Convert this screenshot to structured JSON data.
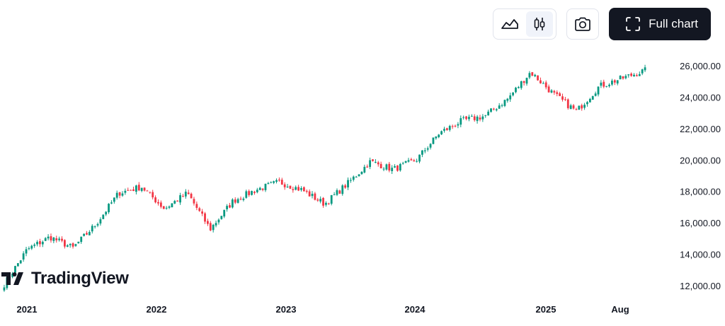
{
  "toolbar": {
    "full_chart_label": "Full chart",
    "icons": [
      "area-chart-icon",
      "candles-icon",
      "camera-icon",
      "fullscreen-icon"
    ]
  },
  "brand": {
    "name": "TradingView"
  },
  "chart_data": {
    "type": "candlestick",
    "title": "",
    "xlabel": "",
    "ylabel": "",
    "y_ticks": [
      "26,000.00",
      "24,000.00",
      "22,000.00",
      "20,000.00",
      "18,000.00",
      "16,000.00",
      "14,000.00",
      "12,000.00"
    ],
    "y_tick_values": [
      26000,
      24000,
      22000,
      20000,
      18000,
      16000,
      14000,
      12000
    ],
    "x_ticks": [
      "2021",
      "2022",
      "2023",
      "2024",
      "2025",
      "Aug"
    ],
    "ylim": [
      11400,
      26800
    ],
    "grid": false,
    "colors": {
      "up": "#089981",
      "down": "#f23645"
    },
    "x_dates": [
      "2021-01",
      "2021-03",
      "2021-05",
      "2021-07",
      "2021-09",
      "2021-11",
      "2022-01",
      "2022-03",
      "2022-05",
      "2022-07",
      "2022-09",
      "2022-11",
      "2023-01",
      "2023-03",
      "2023-05",
      "2023-07",
      "2023-09",
      "2023-11",
      "2024-01",
      "2024-03",
      "2024-05",
      "2024-07",
      "2024-09",
      "2024-11",
      "2025-01",
      "2025-03",
      "2025-05",
      "2025-07",
      "2025-08"
    ],
    "close_approx": [
      12100,
      14300,
      15100,
      14400,
      15900,
      17900,
      18300,
      16900,
      17900,
      15600,
      17400,
      18100,
      18600,
      18100,
      17200,
      18500,
      19900,
      19400,
      20000,
      21700,
      22500,
      22800,
      23900,
      25600,
      24200,
      23100,
      24700,
      25200,
      25700
    ],
    "notable": {
      "peak": 26200,
      "trough_2025": 21800
    }
  }
}
